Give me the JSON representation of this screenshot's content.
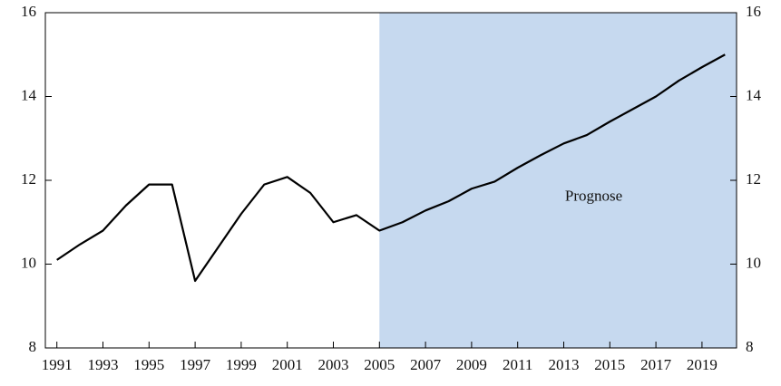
{
  "chart_data": {
    "type": "line",
    "annotation": "Prognose",
    "annotation_at": [
      2014.3,
      11.6
    ],
    "forecast_start": 2005,
    "forecast_color": "#c6d9ef",
    "x": [
      1991,
      1992,
      1993,
      1994,
      1995,
      1996,
      1997,
      1998,
      1999,
      2000,
      2001,
      2002,
      2003,
      2004,
      2005,
      2006,
      2007,
      2008,
      2009,
      2010,
      2011,
      2012,
      2013,
      2014,
      2015,
      2016,
      2017,
      2018,
      2019,
      2020
    ],
    "series": [
      {
        "color": "#000000",
        "values": [
          10.1,
          10.47,
          10.8,
          11.4,
          11.9,
          11.9,
          9.6,
          10.4,
          11.2,
          11.9,
          12.08,
          11.7,
          11.0,
          11.17,
          10.8,
          11.0,
          11.28,
          11.5,
          11.8,
          11.97,
          12.3,
          12.6,
          12.88,
          13.08,
          13.4,
          13.7,
          14.0,
          14.38,
          14.7,
          15.0
        ]
      }
    ],
    "xlim": [
      1990.5,
      2020.5
    ],
    "xticks": [
      1991,
      1993,
      1995,
      1997,
      1999,
      2001,
      2003,
      2005,
      2007,
      2009,
      2011,
      2013,
      2015,
      2017,
      2019
    ],
    "ylim": [
      8,
      16
    ],
    "yticks": [
      8,
      10,
      12,
      14,
      16
    ]
  }
}
